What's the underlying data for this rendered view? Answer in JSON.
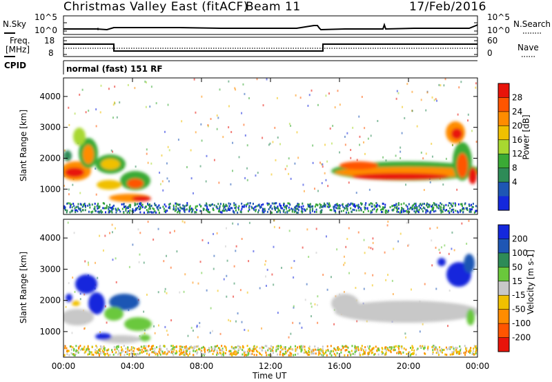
{
  "header": {
    "station": "Christmas Valley East (fitACF)",
    "beam": "Beam 11",
    "date": "17/Feb/2016"
  },
  "params": {
    "nsky_label": "N.Sky",
    "nsearch_label": "N.Search",
    "power_ticks": [
      "10^5",
      "10^0"
    ],
    "freq_label": "Freq.",
    "freq_unit": "[MHz]",
    "freq_ticks": [
      "18",
      "8"
    ],
    "nave_label": "Nave",
    "nave_ticks": [
      "60",
      "0"
    ],
    "cpid_label": "CPID",
    "cpid_value": "normal (fast) 151 RF"
  },
  "chart_data": [
    {
      "type": "heatmap",
      "panel": "power",
      "ylabel": "Slant Range [km]",
      "y_ticks": [
        "1000",
        "2000",
        "3000",
        "4000"
      ],
      "ylim": [
        180,
        4600
      ],
      "colorbar_label": "Power [dB]",
      "colorbar_ticks": [
        "28",
        "24",
        "20",
        "16",
        "12",
        "8",
        "4"
      ],
      "colorbar_colors": [
        "#e8140a",
        "#ff5500",
        "#ff8c00",
        "#f0c000",
        "#a8d830",
        "#3aaa35",
        "#2e8b57",
        "#1e56b4",
        "#1428dc"
      ]
    },
    {
      "type": "heatmap",
      "panel": "velocity",
      "ylabel": "Slant Range [km]",
      "y_ticks": [
        "1000",
        "2000",
        "3000",
        "4000"
      ],
      "ylim": [
        180,
        4600
      ],
      "colorbar_label": "Velocity [m s-1]",
      "colorbar_ticks": [
        "200",
        "100",
        "50",
        "15",
        "-15",
        "-50",
        "-100",
        "-200"
      ],
      "colorbar_colors": [
        "#1428dc",
        "#1e56b4",
        "#2e8b57",
        "#6ac83c",
        "#c8c8c8",
        "#f0c000",
        "#ff8c00",
        "#ff5500",
        "#e8140a"
      ]
    }
  ],
  "time_axis": {
    "xlabel": "Time UT",
    "ticks": [
      "00:00",
      "04:00",
      "08:00",
      "12:00",
      "16:00",
      "20:00",
      "00:00"
    ]
  }
}
